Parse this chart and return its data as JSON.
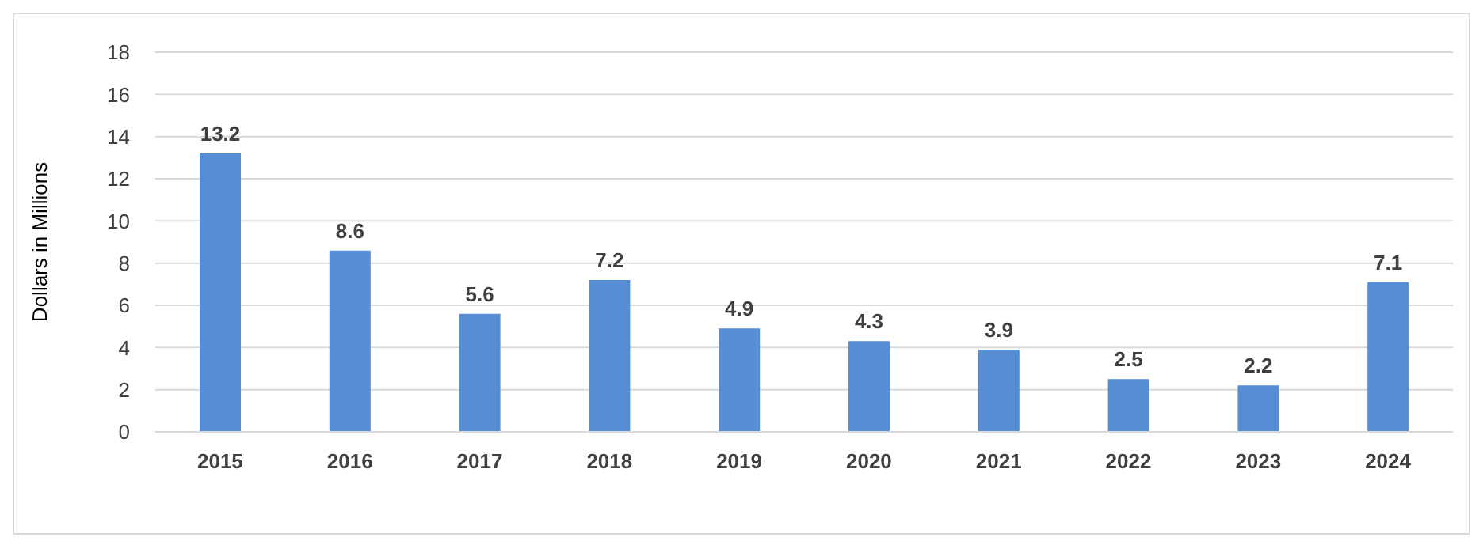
{
  "chart_data": {
    "type": "bar",
    "ylabel": "Dollars in Millions",
    "categories": [
      "2015",
      "2016",
      "2017",
      "2018",
      "2019",
      "2020",
      "2021",
      "2022",
      "2023",
      "2024"
    ],
    "values": [
      13.2,
      8.6,
      5.6,
      7.2,
      4.9,
      4.3,
      3.9,
      2.5,
      2.2,
      7.1
    ],
    "color": "#558ed5",
    "ylim": [
      0,
      18
    ],
    "yticks": [
      0,
      2,
      4,
      6,
      8,
      10,
      12,
      14,
      16,
      18
    ],
    "grid": "y",
    "data_labels": true
  }
}
